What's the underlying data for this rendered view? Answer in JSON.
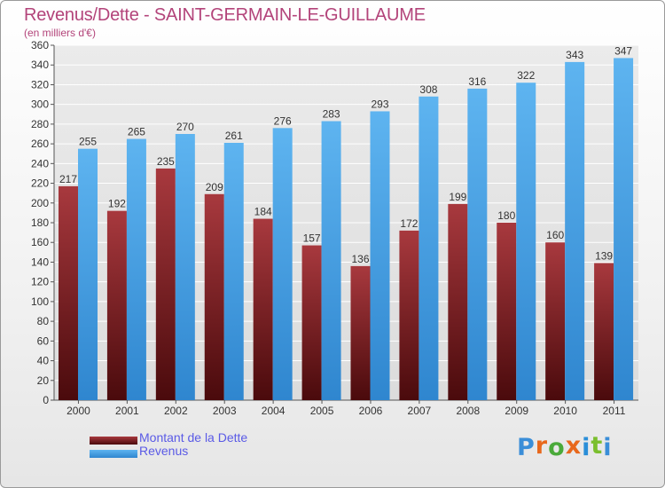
{
  "chart_data": {
    "type": "bar",
    "title": "Revenus/Dette - SAINT-GERMAIN-LE-GUILLAUME",
    "subtitle": "(en milliers d'€)",
    "categories": [
      "2000",
      "2001",
      "2002",
      "2003",
      "2004",
      "2005",
      "2006",
      "2007",
      "2008",
      "2009",
      "2010",
      "2011"
    ],
    "series": [
      {
        "name": "Montant de la Dette",
        "color": "#7a1a1e",
        "values": [
          217,
          192,
          235,
          209,
          184,
          157,
          136,
          172,
          199,
          180,
          160,
          139
        ]
      },
      {
        "name": "Revenus",
        "color": "#4aa3e6",
        "values": [
          255,
          265,
          270,
          261,
          276,
          283,
          293,
          308,
          316,
          322,
          343,
          347
        ]
      }
    ],
    "ylim": [
      0,
      360
    ],
    "ytick_step": 20,
    "grid": true,
    "legend_position": "bottom-left"
  },
  "logo": {
    "text": "Proxiti",
    "colors": [
      "#3a8ed8",
      "#e8681c",
      "#4aaa3a",
      "#e8681c",
      "#2a8ed8",
      "#7bbf2e",
      "#3a8ed8"
    ]
  }
}
